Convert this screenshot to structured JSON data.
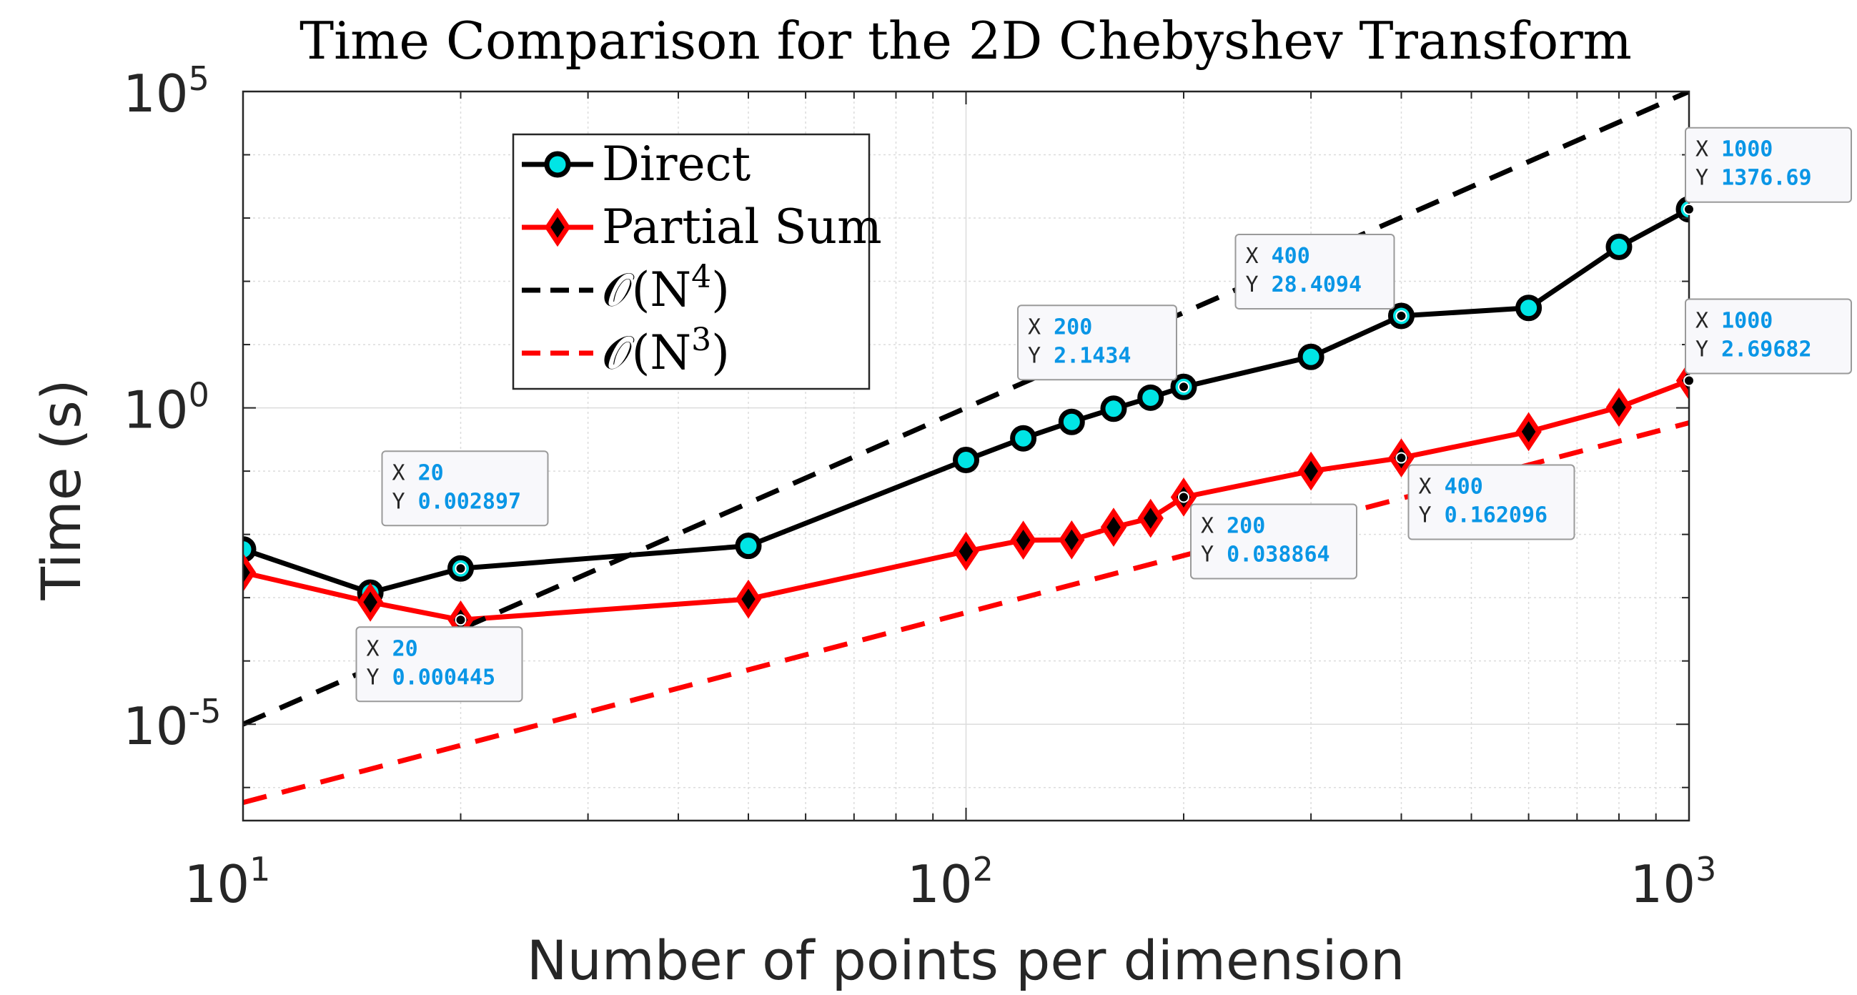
{
  "chart_data": {
    "type": "line",
    "title": "Time Comparison for the 2D Chebyshev Transform",
    "xlabel": "Number of points per dimension",
    "ylabel": "Time (s)",
    "xscale": "log",
    "yscale": "log",
    "xlim": [
      10,
      1000
    ],
    "ylim": [
      3e-07,
      100000
    ],
    "grid": true,
    "legend_position": "upper-left",
    "x_ticks": [
      {
        "value": 10,
        "base": "10",
        "exp": "1"
      },
      {
        "value": 100,
        "base": "10",
        "exp": "2"
      },
      {
        "value": 1000,
        "base": "10",
        "exp": "3"
      }
    ],
    "y_ticks": [
      {
        "value": 1e-05,
        "base": "10",
        "exp": "-5"
      },
      {
        "value": 1,
        "base": "10",
        "exp": "0"
      },
      {
        "value": 100000,
        "base": "10",
        "exp": "5"
      }
    ],
    "series": [
      {
        "name": "Direct",
        "color": "#000000",
        "marker": "circle",
        "marker_fill": "#00e5e5",
        "x": [
          10,
          15,
          20,
          50,
          100,
          120,
          140,
          160,
          180,
          200,
          300,
          400,
          600,
          800,
          1000
        ],
        "y": [
          0.0058,
          0.0012,
          0.002897,
          0.0066,
          0.15,
          0.33,
          0.6,
          0.97,
          1.45,
          2.1434,
          6.4,
          28.4094,
          38,
          350,
          1376.69
        ]
      },
      {
        "name": "Partial Sum",
        "color": "#ff0000",
        "marker": "diamond",
        "marker_fill": "#000000",
        "x": [
          10,
          15,
          20,
          50,
          100,
          120,
          140,
          160,
          180,
          200,
          300,
          400,
          600,
          800,
          1000
        ],
        "y": [
          0.0025,
          0.00085,
          0.000445,
          0.00095,
          0.0054,
          0.0081,
          0.0082,
          0.013,
          0.018,
          0.038864,
          0.1,
          0.162096,
          0.42,
          1.02,
          2.69682
        ]
      },
      {
        "name": "\\mathcal{O}(N^4)",
        "color": "#000000",
        "style": "dashed",
        "x": [
          10,
          1000
        ],
        "y": [
          1e-05,
          100000
        ]
      },
      {
        "name": "\\mathcal{O}(N^3)",
        "color": "#ff0000",
        "style": "dashed",
        "x": [
          10,
          1000
        ],
        "y": [
          5.8e-07,
          0.58
        ]
      }
    ],
    "legend": [
      {
        "series": "Direct",
        "label": "Direct"
      },
      {
        "series": "Partial Sum",
        "label": "Partial Sum"
      },
      {
        "series": "N4",
        "prefix": "𝒪(N",
        "sup": "4",
        "suffix": ")"
      },
      {
        "series": "N3",
        "prefix": "𝒪(N",
        "sup": "3",
        "suffix": ")"
      }
    ],
    "annotations": [
      {
        "series": 0,
        "x_label": "X",
        "y_label": "Y",
        "x": "20",
        "y": "0.002897",
        "placement": "upper-right"
      },
      {
        "series": 1,
        "x_label": "X",
        "y_label": "Y",
        "x": "20",
        "y": "0.000445",
        "placement": "lower-left"
      },
      {
        "series": 0,
        "x_label": "X",
        "y_label": "Y",
        "x": "200",
        "y": "2.1434",
        "placement": "upper-left"
      },
      {
        "series": 1,
        "x_label": "X",
        "y_label": "Y",
        "x": "200",
        "y": "0.038864",
        "placement": "lower-right"
      },
      {
        "series": 0,
        "x_label": "X",
        "y_label": "Y",
        "x": "400",
        "y": "28.4094",
        "placement": "upper-left"
      },
      {
        "series": 1,
        "x_label": "X",
        "y_label": "Y",
        "x": "400",
        "y": "0.162096",
        "placement": "lower-right"
      },
      {
        "series": 0,
        "x_label": "X",
        "y_label": "Y",
        "x": "1000",
        "y": "1376.69",
        "placement": "upper-right"
      },
      {
        "series": 1,
        "x_label": "X",
        "y_label": "Y",
        "x": "1000",
        "y": "2.69682",
        "placement": "upper-right"
      }
    ],
    "colors": {
      "tip_value": "#0a96e6",
      "tip_label": "#262626",
      "tip_bg": "#f8f8fb",
      "grid": "#dcdcdc",
      "axis": "#262626"
    }
  }
}
